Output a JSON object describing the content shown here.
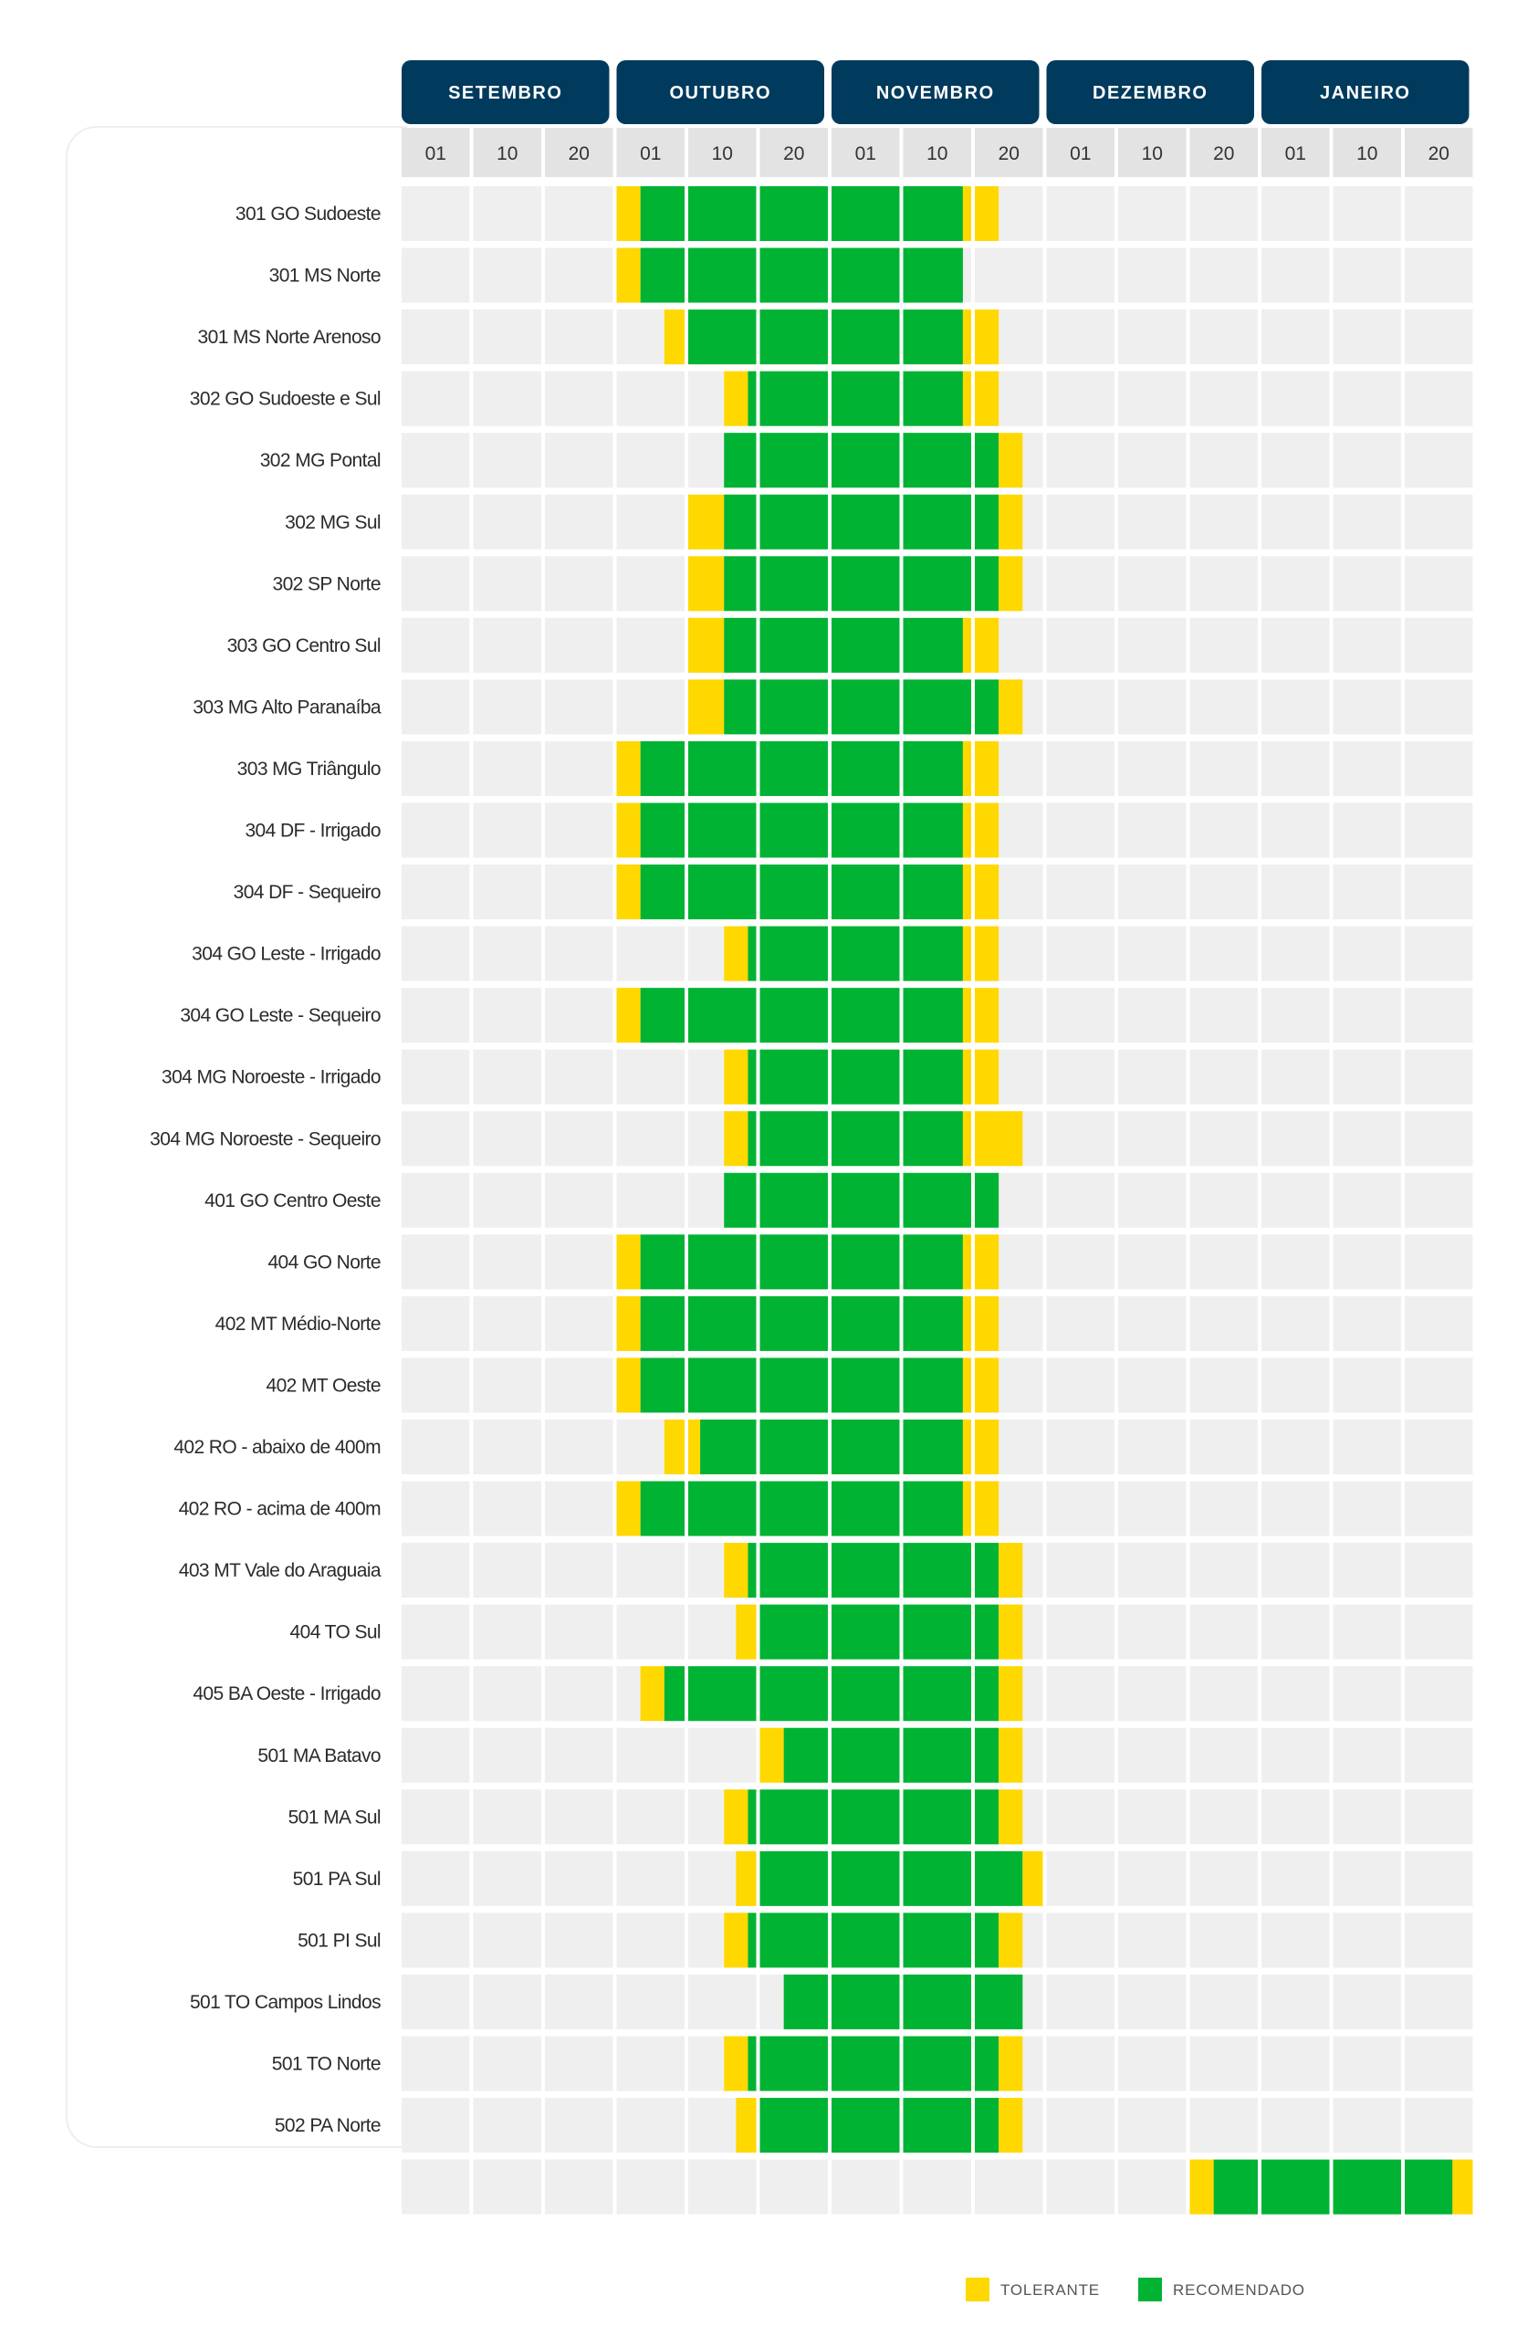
{
  "chart_data": {
    "type": "table",
    "title": "",
    "months": [
      "SETEMBRO",
      "OUTUBRO",
      "NOVEMBRO",
      "DEZEMBRO",
      "JANEIRO"
    ],
    "days": [
      "01",
      "10",
      "20"
    ],
    "period_unit": "1/6 of a 10-day window",
    "colors": {
      "tolerante": "#FFD800",
      "recomendado": "#00B333",
      "empty": "#EFEFEF",
      "header": "#003A5C"
    },
    "legend": {
      "placement": "bottom-right",
      "items": [
        {
          "label": "TOLERANTE",
          "status": "T"
        },
        {
          "label": "RECOMENDADO",
          "status": "R"
        }
      ]
    },
    "rows": [
      {
        "name": "301 GO Sudoeste",
        "segments": [
          [
            "T",
            18,
            20
          ],
          [
            "R",
            20,
            47
          ],
          [
            "T",
            47,
            50
          ]
        ]
      },
      {
        "name": "301 MS Norte",
        "segments": [
          [
            "T",
            18,
            20
          ],
          [
            "R",
            20,
            47
          ]
        ]
      },
      {
        "name": "301 MS Norte Arenoso",
        "segments": [
          [
            "T",
            22,
            24
          ],
          [
            "R",
            24,
            47
          ],
          [
            "T",
            47,
            50
          ]
        ]
      },
      {
        "name": "302 GO Sudoeste e Sul",
        "segments": [
          [
            "T",
            27,
            29
          ],
          [
            "R",
            29,
            47
          ],
          [
            "T",
            47,
            50
          ]
        ]
      },
      {
        "name": "302 MG Pontal",
        "segments": [
          [
            "R",
            27,
            50
          ],
          [
            "T",
            50,
            52
          ]
        ]
      },
      {
        "name": "302 MG Sul",
        "segments": [
          [
            "T",
            24,
            27
          ],
          [
            "R",
            27,
            50
          ],
          [
            "T",
            50,
            52
          ]
        ]
      },
      {
        "name": "302 SP Norte",
        "segments": [
          [
            "T",
            24,
            27
          ],
          [
            "R",
            27,
            50
          ],
          [
            "T",
            50,
            52
          ]
        ]
      },
      {
        "name": "303 GO Centro Sul",
        "segments": [
          [
            "T",
            24,
            27
          ],
          [
            "R",
            27,
            47
          ],
          [
            "T",
            47,
            50
          ]
        ]
      },
      {
        "name": "303 MG Alto Paranaíba",
        "segments": [
          [
            "T",
            24,
            27
          ],
          [
            "R",
            27,
            50
          ],
          [
            "T",
            50,
            52
          ]
        ]
      },
      {
        "name": "303 MG Triângulo",
        "segments": [
          [
            "T",
            18,
            20
          ],
          [
            "R",
            20,
            47
          ],
          [
            "T",
            47,
            50
          ]
        ]
      },
      {
        "name": "304 DF - Irrigado",
        "segments": [
          [
            "T",
            18,
            20
          ],
          [
            "R",
            20,
            47
          ],
          [
            "T",
            47,
            50
          ]
        ]
      },
      {
        "name": "304 DF - Sequeiro",
        "segments": [
          [
            "T",
            18,
            20
          ],
          [
            "R",
            20,
            47
          ],
          [
            "T",
            47,
            50
          ]
        ]
      },
      {
        "name": "304 GO Leste - Irrigado",
        "segments": [
          [
            "T",
            27,
            29
          ],
          [
            "R",
            29,
            47
          ],
          [
            "T",
            47,
            50
          ]
        ]
      },
      {
        "name": "304 GO Leste - Sequeiro",
        "segments": [
          [
            "T",
            18,
            20
          ],
          [
            "R",
            20,
            47
          ],
          [
            "T",
            47,
            50
          ]
        ]
      },
      {
        "name": "304 MG Noroeste - Irrigado",
        "segments": [
          [
            "T",
            27,
            29
          ],
          [
            "R",
            29,
            47
          ],
          [
            "T",
            47,
            50
          ]
        ]
      },
      {
        "name": "304 MG Noroeste - Sequeiro",
        "segments": [
          [
            "T",
            27,
            29
          ],
          [
            "R",
            29,
            47
          ],
          [
            "T",
            47,
            52
          ]
        ]
      },
      {
        "name": "401 GO Centro Oeste",
        "segments": [
          [
            "R",
            27,
            50
          ]
        ]
      },
      {
        "name": "404 GO Norte",
        "segments": [
          [
            "T",
            18,
            20
          ],
          [
            "R",
            20,
            47
          ],
          [
            "T",
            47,
            50
          ]
        ]
      },
      {
        "name": "402 MT Médio-Norte",
        "segments": [
          [
            "T",
            18,
            20
          ],
          [
            "R",
            20,
            47
          ],
          [
            "T",
            47,
            50
          ]
        ]
      },
      {
        "name": "402 MT Oeste",
        "segments": [
          [
            "T",
            18,
            20
          ],
          [
            "R",
            20,
            47
          ],
          [
            "T",
            47,
            50
          ]
        ]
      },
      {
        "name": "402 RO - abaixo de 400m",
        "segments": [
          [
            "T",
            22,
            25
          ],
          [
            "R",
            25,
            47
          ],
          [
            "T",
            47,
            50
          ]
        ]
      },
      {
        "name": "402 RO - acima de 400m",
        "segments": [
          [
            "T",
            18,
            20
          ],
          [
            "R",
            20,
            47
          ],
          [
            "T",
            47,
            50
          ]
        ]
      },
      {
        "name": "403 MT Vale do Araguaia",
        "segments": [
          [
            "T",
            27,
            29
          ],
          [
            "R",
            29,
            50
          ],
          [
            "T",
            50,
            52
          ]
        ]
      },
      {
        "name": "404 TO Sul",
        "segments": [
          [
            "T",
            28,
            30
          ],
          [
            "R",
            30,
            50
          ],
          [
            "T",
            50,
            52
          ]
        ]
      },
      {
        "name": "405 BA Oeste - Irrigado",
        "segments": [
          [
            "T",
            20,
            22
          ],
          [
            "R",
            22,
            50
          ],
          [
            "T",
            50,
            52
          ]
        ]
      },
      {
        "name": "501 MA Batavo",
        "segments": [
          [
            "T",
            30,
            32
          ],
          [
            "R",
            32,
            50
          ],
          [
            "T",
            50,
            52
          ]
        ]
      },
      {
        "name": "501 MA Sul",
        "segments": [
          [
            "T",
            27,
            29
          ],
          [
            "R",
            29,
            50
          ],
          [
            "T",
            50,
            52
          ]
        ]
      },
      {
        "name": "501 PA Sul",
        "segments": [
          [
            "T",
            28,
            30
          ],
          [
            "R",
            30,
            52
          ],
          [
            "T",
            52,
            54
          ]
        ]
      },
      {
        "name": "501 PI Sul",
        "segments": [
          [
            "T",
            27,
            29
          ],
          [
            "R",
            29,
            50
          ],
          [
            "T",
            50,
            52
          ]
        ]
      },
      {
        "name": "501 TO Campos Lindos",
        "segments": [
          [
            "R",
            32,
            52
          ]
        ]
      },
      {
        "name": "501 TO Norte",
        "segments": [
          [
            "T",
            27,
            29
          ],
          [
            "R",
            29,
            50
          ],
          [
            "T",
            50,
            52
          ]
        ]
      },
      {
        "name": "502 PA Norte",
        "segments": [
          [
            "T",
            28,
            30
          ],
          [
            "R",
            30,
            50
          ],
          [
            "T",
            50,
            52
          ]
        ]
      },
      {
        "name": "",
        "segments": [
          [
            "T",
            66,
            68
          ],
          [
            "R",
            68,
            88
          ],
          [
            "T",
            88,
            90
          ]
        ]
      }
    ]
  }
}
